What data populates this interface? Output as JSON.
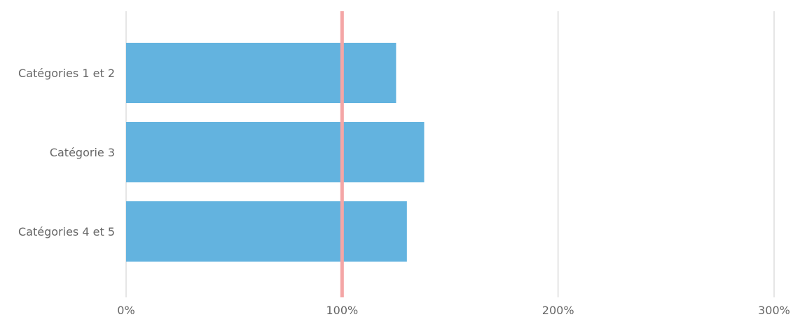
{
  "chart_data": {
    "type": "bar",
    "orientation": "horizontal",
    "categories": [
      "Catégories 1 et 2",
      "Catégorie 3",
      "Catégories 4 et 5"
    ],
    "series": [
      {
        "values": [
          125,
          138,
          130
        ]
      }
    ],
    "value_unit": "%",
    "xlim": [
      0,
      300
    ],
    "x_ticks": [
      0,
      100,
      200,
      300
    ],
    "x_tick_labels": [
      "0%",
      "100%",
      "200%",
      "300%"
    ],
    "reference_line": {
      "value": 100
    },
    "grid": true,
    "legend": "none",
    "title": "",
    "xlabel": "",
    "ylabel": "",
    "colors": {
      "bar": "#63b3df",
      "reference_line": "#f4a6a6",
      "grid": "#e6e6e6",
      "text": "#666666"
    }
  }
}
